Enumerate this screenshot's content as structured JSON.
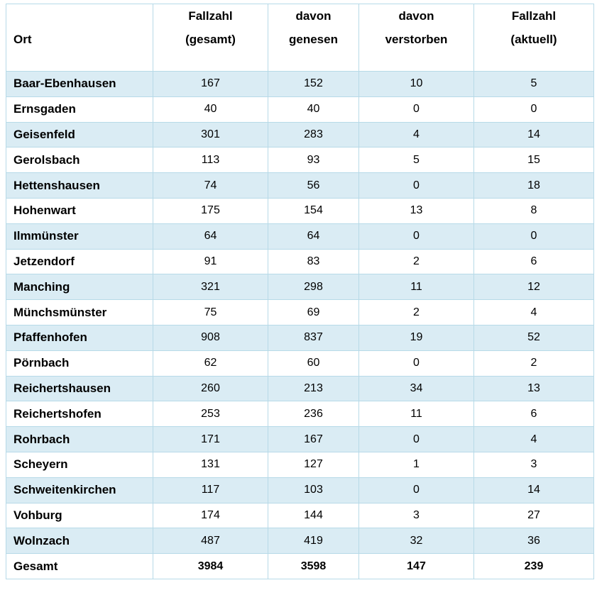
{
  "table": {
    "columns": [
      {
        "key": "ort",
        "label": "Ort"
      },
      {
        "key": "gesamt",
        "line1": "Fallzahl",
        "line2": "(gesamt)"
      },
      {
        "key": "genesen",
        "line1": "davon",
        "line2": "genesen"
      },
      {
        "key": "verstorben",
        "line1": "davon",
        "line2": "verstorben"
      },
      {
        "key": "aktuell",
        "line1": "Fallzahl",
        "line2": "(aktuell)"
      }
    ],
    "rows": [
      {
        "ort": "Baar-Ebenhausen",
        "gesamt": "167",
        "genesen": "152",
        "verstorben": "10",
        "aktuell": "5"
      },
      {
        "ort": "Ernsgaden",
        "gesamt": "40",
        "genesen": "40",
        "verstorben": "0",
        "aktuell": "0"
      },
      {
        "ort": "Geisenfeld",
        "gesamt": "301",
        "genesen": "283",
        "verstorben": "4",
        "aktuell": "14"
      },
      {
        "ort": "Gerolsbach",
        "gesamt": "113",
        "genesen": "93",
        "verstorben": "5",
        "aktuell": "15"
      },
      {
        "ort": "Hettenshausen",
        "gesamt": "74",
        "genesen": "56",
        "verstorben": "0",
        "aktuell": "18"
      },
      {
        "ort": "Hohenwart",
        "gesamt": "175",
        "genesen": "154",
        "verstorben": "13",
        "aktuell": "8"
      },
      {
        "ort": "Ilmmünster",
        "gesamt": "64",
        "genesen": "64",
        "verstorben": "0",
        "aktuell": "0"
      },
      {
        "ort": "Jetzendorf",
        "gesamt": "91",
        "genesen": "83",
        "verstorben": "2",
        "aktuell": "6"
      },
      {
        "ort": "Manching",
        "gesamt": "321",
        "genesen": "298",
        "verstorben": "11",
        "aktuell": "12"
      },
      {
        "ort": "Münchsmünster",
        "gesamt": "75",
        "genesen": "69",
        "verstorben": "2",
        "aktuell": "4"
      },
      {
        "ort": "Pfaffenhofen",
        "gesamt": "908",
        "genesen": "837",
        "verstorben": "19",
        "aktuell": "52"
      },
      {
        "ort": "Pörnbach",
        "gesamt": "62",
        "genesen": "60",
        "verstorben": "0",
        "aktuell": "2"
      },
      {
        "ort": "Reichertshausen",
        "gesamt": "260",
        "genesen": "213",
        "verstorben": "34",
        "aktuell": "13"
      },
      {
        "ort": "Reichertshofen",
        "gesamt": "253",
        "genesen": "236",
        "verstorben": "11",
        "aktuell": "6"
      },
      {
        "ort": "Rohrbach",
        "gesamt": "171",
        "genesen": "167",
        "verstorben": "0",
        "aktuell": "4"
      },
      {
        "ort": "Scheyern",
        "gesamt": "131",
        "genesen": "127",
        "verstorben": "1",
        "aktuell": "3"
      },
      {
        "ort": "Schweitenkirchen",
        "gesamt": "117",
        "genesen": "103",
        "verstorben": "0",
        "aktuell": "14"
      },
      {
        "ort": "Vohburg",
        "gesamt": "174",
        "genesen": "144",
        "verstorben": "3",
        "aktuell": "27"
      },
      {
        "ort": "Wolnzach",
        "gesamt": "487",
        "genesen": "419",
        "verstorben": "32",
        "aktuell": "36"
      }
    ],
    "total_row": {
      "ort": "Gesamt",
      "gesamt": "3984",
      "genesen": "3598",
      "verstorben": "147",
      "aktuell": "239"
    }
  },
  "colors": {
    "row_alt_background": "#daecf4",
    "cell_border": "#b7dae8",
    "header_separator": "#a5cfdf",
    "text": "#000000"
  }
}
